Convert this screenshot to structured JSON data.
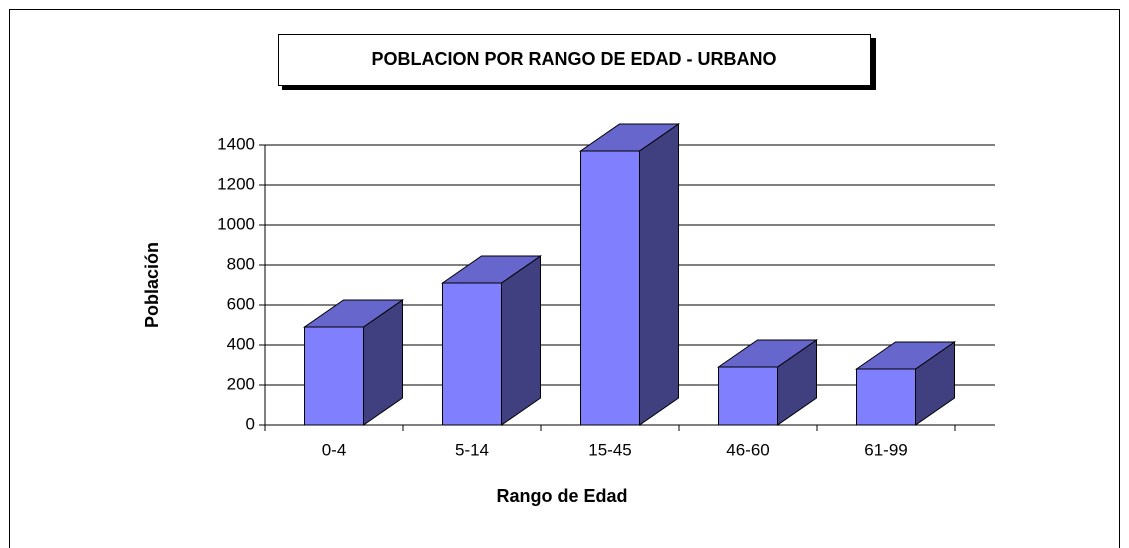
{
  "chart_data": {
    "type": "bar3d",
    "title": "POBLACION POR RANGO DE EDAD - URBANO",
    "x_label": "Rango de Edad",
    "y_label": "Población",
    "categories": [
      "0-4",
      "5-14",
      "15-45",
      "46-60",
      "61-99"
    ],
    "values": [
      490,
      710,
      1370,
      290,
      280
    ],
    "color": "#8080ff",
    "side_color": "#404080",
    "top_color": "#6666cc",
    "ylim": [
      0,
      1400
    ],
    "yticks": [
      0,
      200,
      400,
      600,
      800,
      1000,
      1200,
      1400
    ],
    "grid": true
  }
}
